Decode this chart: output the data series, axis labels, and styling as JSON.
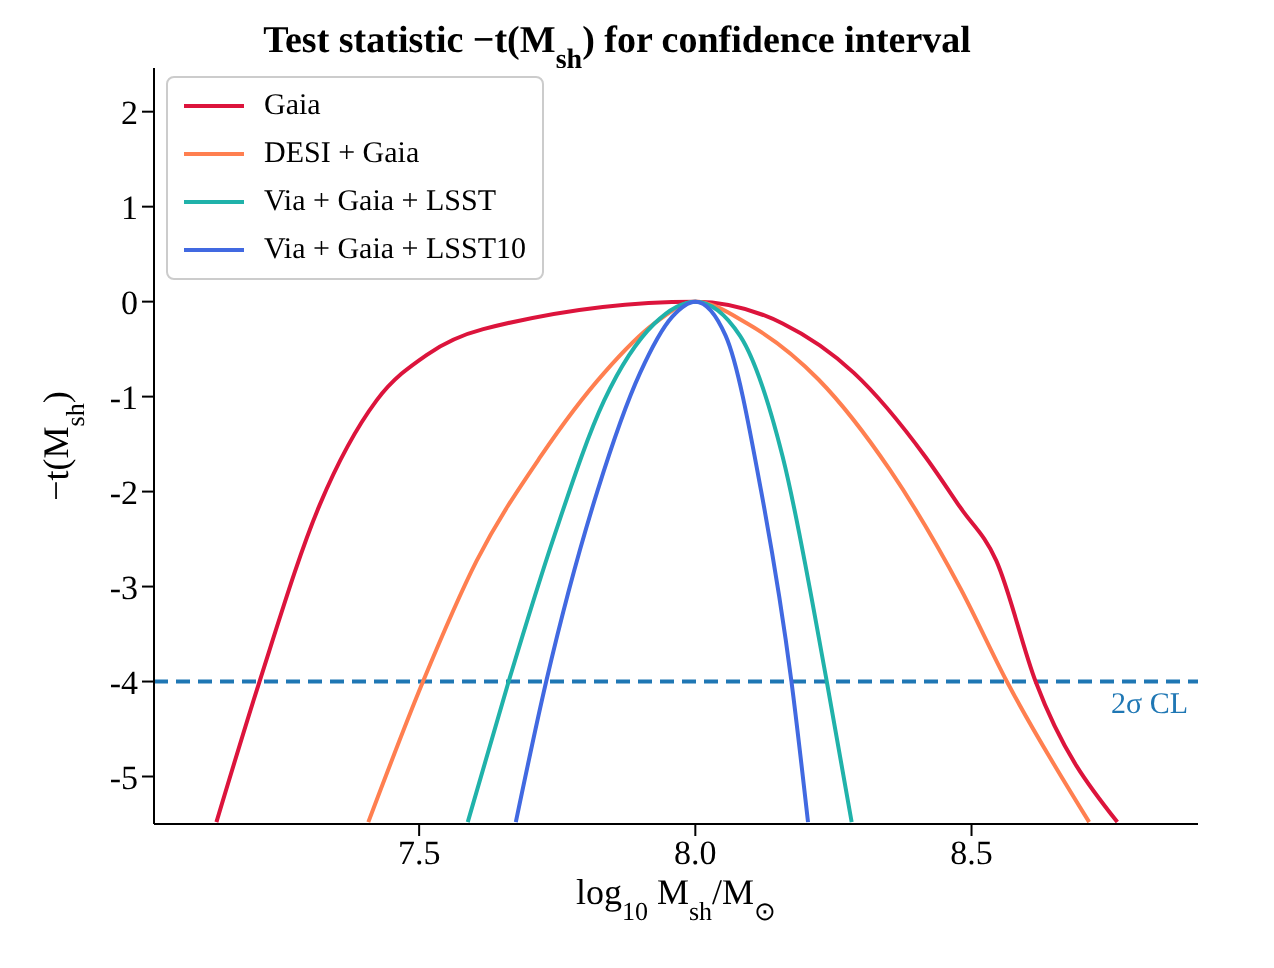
{
  "chart_data": {
    "type": "line",
    "title": "Test statistic −t(M$_{sh}$) for confidence interval",
    "xlabel": "log$_{10}$ M$_{sh}$/M$_{⊙}$",
    "ylabel": "−t(M$_{sh}$)",
    "series": [
      {
        "name": "Gaia",
        "color": "#dc143c",
        "x": [
          7.133,
          7.211,
          7.32,
          7.423,
          7.514,
          7.616,
          8.0,
          8.158,
          8.287,
          8.416,
          8.48,
          8.545,
          8.616,
          8.764
        ],
        "values": [
          -5.48,
          -4.0,
          -2.14,
          -1.04,
          -0.56,
          -0.29,
          0,
          -0.23,
          -0.75,
          -1.63,
          -2.17,
          -2.73,
          -4.0,
          -5.48
        ]
      },
      {
        "name": "DESI + Gaia",
        "color": "#ff7f50",
        "x": [
          7.408,
          7.507,
          7.604,
          7.72,
          7.835,
          7.926,
          8.0,
          8.094,
          8.223,
          8.352,
          8.48,
          8.564,
          8.713
        ],
        "values": [
          -5.48,
          -4.0,
          -2.73,
          -1.63,
          -0.75,
          -0.23,
          0,
          -0.23,
          -0.82,
          -1.77,
          -3.02,
          -4.0,
          -5.48
        ]
      },
      {
        "name": "Via + Gaia + LSST",
        "color": "#20b2aa",
        "x": [
          7.588,
          7.662,
          7.745,
          7.835,
          7.926,
          8.0,
          8.081,
          8.158,
          8.238,
          8.283
        ],
        "values": [
          -5.48,
          -4.0,
          -2.46,
          -1.04,
          -0.23,
          0,
          -0.36,
          -1.63,
          -4.0,
          -5.48
        ]
      },
      {
        "name": "Via + Gaia + LSST10",
        "color": "#4169e1",
        "x": [
          7.675,
          7.73,
          7.823,
          7.9,
          7.958,
          8.0,
          8.055,
          8.119,
          8.174,
          8.204
        ],
        "values": [
          -5.48,
          -4.0,
          -1.99,
          -0.75,
          -0.16,
          0,
          -0.36,
          -1.99,
          -4.0,
          -5.48
        ]
      }
    ],
    "ref_lines": [
      {
        "axis": "y",
        "value": -4,
        "label": "2σ CL",
        "color": "#1f77b4",
        "line_style": "dashed"
      }
    ],
    "xlim": [
      7.02,
      8.91
    ],
    "xticks": [
      7.5,
      {
        "value": 8.0,
        "label": "8.0"
      },
      8.5
    ],
    "ylim": [
      -5.5,
      2.46
    ],
    "yticks": [
      -5,
      -4,
      -3,
      -2,
      -1,
      0,
      1,
      2
    ],
    "legend": "top left",
    "grid": false,
    "marker": "none",
    "line_style": "solid"
  }
}
